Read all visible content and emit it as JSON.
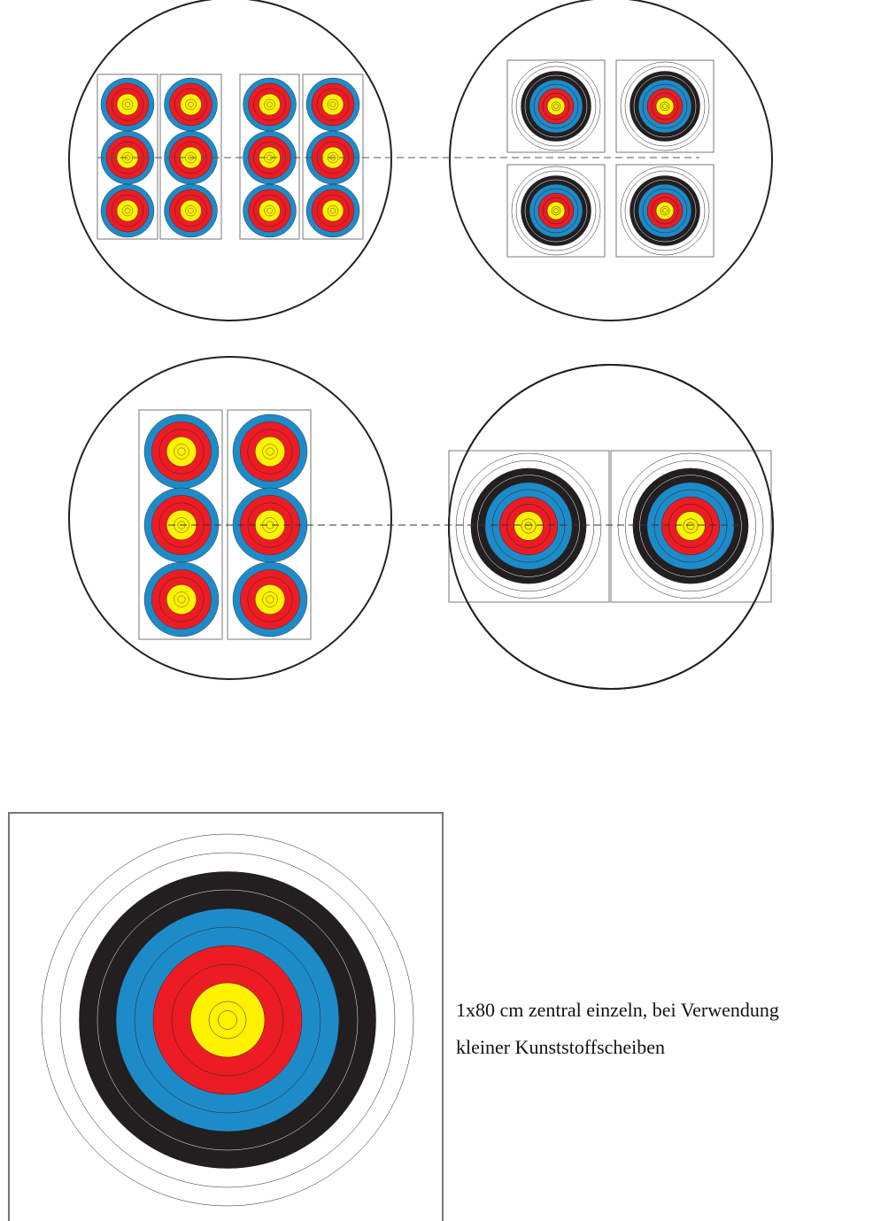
{
  "caption": {
    "lines": [
      "1x80 cm zentral einzeln, bei Verwendung",
      "kleiner Kunststoffscheiben"
    ]
  }
}
